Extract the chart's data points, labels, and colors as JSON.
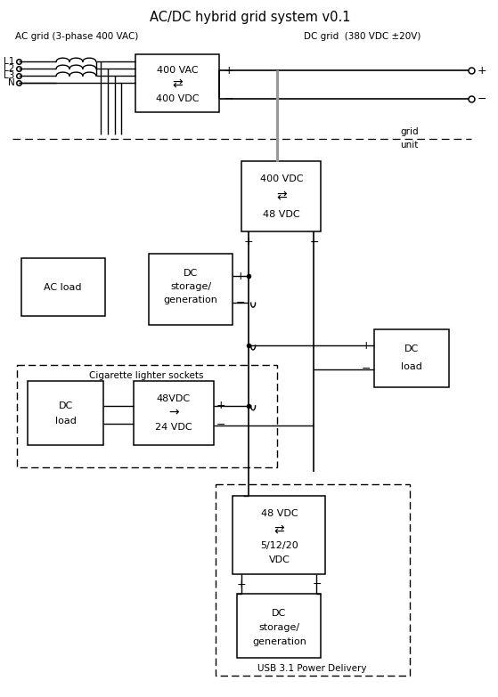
{
  "title": "AC/DC hybrid grid system v0.1",
  "ac_label": "AC grid (3-phase 400 VAC)",
  "dc_label": "DC grid  (380 VDC ±20V)",
  "grid_label": "grid",
  "unit_label": "unit",
  "usb_label": "USB 3.1 Power Delivery",
  "cig_label": "Cigarette lighter sockets",
  "phases": [
    "L1",
    "L2",
    "L3",
    "N"
  ],
  "line_color": "black",
  "bus_color": "#999999"
}
